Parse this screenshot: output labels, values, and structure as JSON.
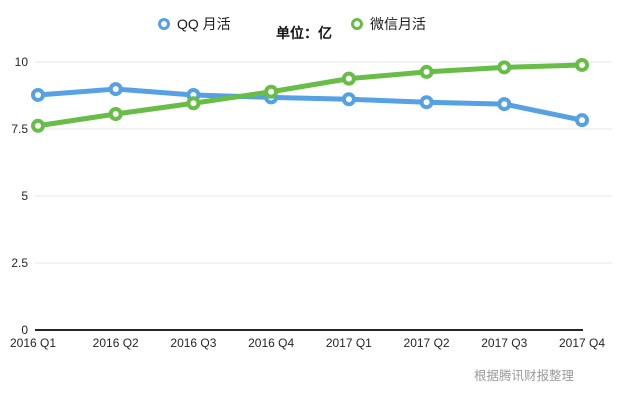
{
  "legend": {
    "series": [
      {
        "label": "QQ 月活",
        "color": "#55a1e3"
      },
      {
        "label": "微信月活",
        "color": "#68bd46"
      }
    ],
    "unit_label": "单位：亿"
  },
  "footer": {
    "source_note": "根据腾讯财报整理"
  },
  "chart_data": {
    "type": "line",
    "title": "",
    "xlabel": "",
    "ylabel": "",
    "unit": "亿",
    "categories": [
      "2016 Q1",
      "2016 Q2",
      "2016 Q3",
      "2016 Q4",
      "2017 Q1",
      "2017 Q2",
      "2017 Q3",
      "2017 Q4"
    ],
    "series": [
      {
        "name": "QQ 月活",
        "color": "#55a1e3",
        "values": [
          8.77,
          8.99,
          8.77,
          8.68,
          8.61,
          8.5,
          8.43,
          7.83
        ]
      },
      {
        "name": "微信月活",
        "color": "#68bd46",
        "values": [
          7.62,
          8.06,
          8.46,
          8.89,
          9.38,
          9.63,
          9.8,
          9.89
        ]
      }
    ],
    "ylim": [
      0,
      10
    ],
    "yticks": [
      0,
      2.5,
      5,
      7.5,
      10
    ],
    "grid": true,
    "legend_position": "top"
  },
  "colors": {
    "gridline": "#e7e7e7",
    "axis_line": "#262626",
    "tick_text": "#262626",
    "marker_fill": "#ffffff"
  }
}
